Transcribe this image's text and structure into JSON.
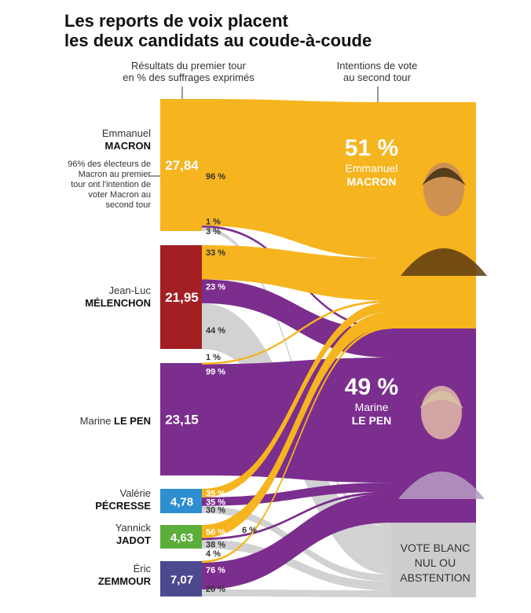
{
  "title_line1": "Les reports de voix placent",
  "title_line2": "les deux candidats au coude-à-coude",
  "header_left_line1": "Résultats du premier tour",
  "header_left_line2": "en % des suffrages exprimés",
  "header_right_line1": "Intentions de vote",
  "header_right_line2": "au second tour",
  "note": "96% des électeurs de Macron au premier tour ont l'intention de voter Macron au second tour",
  "colors": {
    "macron": "#F6B41E",
    "lepen": "#7B2E8E",
    "abst": "#CDCDCD",
    "melenchon": "#A31F24",
    "pecresse": "#2E8FD0",
    "jadot": "#5CAE3A",
    "zemmour": "#4B4A8F"
  },
  "candidates": [
    {
      "first": "Emmanuel",
      "last": "MACRON",
      "value": "27,84"
    },
    {
      "first": "Jean-Luc",
      "last": "MÉLENCHON",
      "value": "21,95"
    },
    {
      "first": "Marine",
      "last": "LE PEN",
      "value": "23,15"
    },
    {
      "first": "Valérie",
      "last": "PÉCRESSE",
      "value": "4,78"
    },
    {
      "first": "Yannick",
      "last": "JADOT",
      "value": "4,63"
    },
    {
      "first": "Éric",
      "last": "ZEMMOUR",
      "value": "7,07"
    }
  ],
  "outcomes": {
    "macron": {
      "pct": "51 %",
      "first": "Emmanuel",
      "last": "MACRON"
    },
    "lepen": {
      "pct": "49 %",
      "first": "Marine",
      "last": "LE PEN"
    },
    "abst": {
      "label_line1": "VOTE BLANC",
      "label_line2": "NUL OU",
      "label_line3": "ABSTENTION"
    }
  },
  "chart_data": {
    "type": "sankey",
    "title": "Les reports de voix placent les deux candidats au coude-à-coude",
    "sources": [
      {
        "name": "Emmanuel MACRON",
        "value": 27.84
      },
      {
        "name": "Jean-Luc MÉLENCHON",
        "value": 21.95
      },
      {
        "name": "Marine LE PEN",
        "value": 23.15
      },
      {
        "name": "Valérie PÉCRESSE",
        "value": 4.78
      },
      {
        "name": "Yannick JADOT",
        "value": 4.63
      },
      {
        "name": "Éric ZEMMOUR",
        "value": 7.07
      }
    ],
    "targets": [
      {
        "name": "Emmanuel MACRON",
        "value": 51
      },
      {
        "name": "Marine LE PEN",
        "value": 49
      },
      {
        "name": "VOTE BLANC NUL OU ABSTENTION"
      }
    ],
    "flows": [
      {
        "from": "Emmanuel MACRON",
        "to": "Emmanuel MACRON",
        "pct": 96,
        "label": "96 %"
      },
      {
        "from": "Emmanuel MACRON",
        "to": "Marine LE PEN",
        "pct": 1,
        "label": "1 %"
      },
      {
        "from": "Emmanuel MACRON",
        "to": "VOTE BLANC NUL OU ABSTENTION",
        "pct": 3,
        "label": "3 %"
      },
      {
        "from": "Jean-Luc MÉLENCHON",
        "to": "Emmanuel MACRON",
        "pct": 33,
        "label": "33 %"
      },
      {
        "from": "Jean-Luc MÉLENCHON",
        "to": "Marine LE PEN",
        "pct": 23,
        "label": "23 %"
      },
      {
        "from": "Jean-Luc MÉLENCHON",
        "to": "VOTE BLANC NUL OU ABSTENTION",
        "pct": 44,
        "label": "44 %"
      },
      {
        "from": "Marine LE PEN",
        "to": "Emmanuel MACRON",
        "pct": 1,
        "label": "1 %"
      },
      {
        "from": "Marine LE PEN",
        "to": "Marine LE PEN",
        "pct": 99,
        "label": "99 %"
      },
      {
        "from": "Valérie PÉCRESSE",
        "to": "Emmanuel MACRON",
        "pct": 35,
        "label": "35 %"
      },
      {
        "from": "Valérie PÉCRESSE",
        "to": "Marine LE PEN",
        "pct": 35,
        "label": "35 %"
      },
      {
        "from": "Valérie PÉCRESSE",
        "to": "VOTE BLANC NUL OU ABSTENTION",
        "pct": 30,
        "label": "30 %"
      },
      {
        "from": "Yannick JADOT",
        "to": "Emmanuel MACRON",
        "pct": 56,
        "label": "56 %"
      },
      {
        "from": "Yannick JADOT",
        "to": "Marine LE PEN",
        "pct": 6,
        "label": "6 %"
      },
      {
        "from": "Yannick JADOT",
        "to": "VOTE BLANC NUL OU ABSTENTION",
        "pct": 38,
        "label": "38 %"
      },
      {
        "from": "Éric ZEMMOUR",
        "to": "Emmanuel MACRON",
        "pct": 4,
        "label": "4 %"
      },
      {
        "from": "Éric ZEMMOUR",
        "to": "Marine LE PEN",
        "pct": 76,
        "label": "76 %"
      },
      {
        "from": "Éric ZEMMOUR",
        "to": "VOTE BLANC NUL OU ABSTENTION",
        "pct": 20,
        "label": "20 %"
      }
    ]
  }
}
